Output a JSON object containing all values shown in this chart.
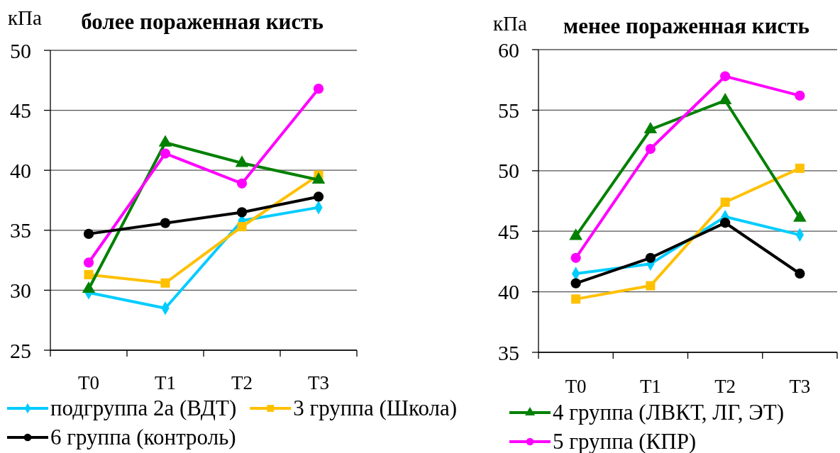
{
  "chart_data": [
    {
      "type": "line",
      "title": "более пораженная кисть",
      "ylabel": "кПа",
      "categories": [
        "T0",
        "T1",
        "T2",
        "T3"
      ],
      "ylim": [
        25,
        50
      ],
      "yticks": [
        25,
        30,
        35,
        40,
        45,
        50
      ],
      "grid": "y",
      "legend": "bottom",
      "series": [
        {
          "name": "подгруппа 2а (ВДТ)",
          "color": "#00ccff",
          "marker": "diamond",
          "values": [
            29.8,
            28.5,
            35.8,
            36.9
          ]
        },
        {
          "name": "3 группа (Школа)",
          "color": "#ffc000",
          "marker": "square",
          "values": [
            31.3,
            30.6,
            35.3,
            39.6
          ]
        },
        {
          "color": "#008000",
          "marker": "triangle",
          "values": [
            30.1,
            42.3,
            40.6,
            39.2
          ]
        },
        {
          "color": "#ff00ff",
          "marker": "circle",
          "values": [
            32.3,
            41.4,
            38.9,
            46.8
          ]
        },
        {
          "name": "6 группа (контроль)",
          "color": "#000000",
          "marker": "circle",
          "values": [
            34.7,
            35.6,
            36.5,
            37.8
          ]
        }
      ]
    },
    {
      "type": "line",
      "title": "менее пораженная кисть",
      "ylabel": "кПа",
      "categories": [
        "T0",
        "T1",
        "T2",
        "T3"
      ],
      "ylim": [
        35,
        60
      ],
      "yticks": [
        35,
        40,
        45,
        50,
        55,
        60
      ],
      "grid": "y",
      "legend": "bottom",
      "series": [
        {
          "color": "#00ccff",
          "marker": "diamond",
          "values": [
            41.5,
            42.3,
            46.2,
            44.7
          ]
        },
        {
          "color": "#ffc000",
          "marker": "square",
          "values": [
            39.4,
            40.5,
            47.4,
            50.2
          ]
        },
        {
          "name": "4 группа (ЛВКТ, ЛГ, ЭТ)",
          "color": "#008000",
          "marker": "triangle",
          "values": [
            44.6,
            53.4,
            55.8,
            46.1
          ]
        },
        {
          "name": "5 группа (КПР)",
          "color": "#ff00ff",
          "marker": "circle",
          "values": [
            42.8,
            51.8,
            57.8,
            56.2
          ]
        },
        {
          "color": "#000000",
          "marker": "circle",
          "values": [
            40.7,
            42.8,
            45.7,
            41.5
          ]
        }
      ]
    }
  ]
}
